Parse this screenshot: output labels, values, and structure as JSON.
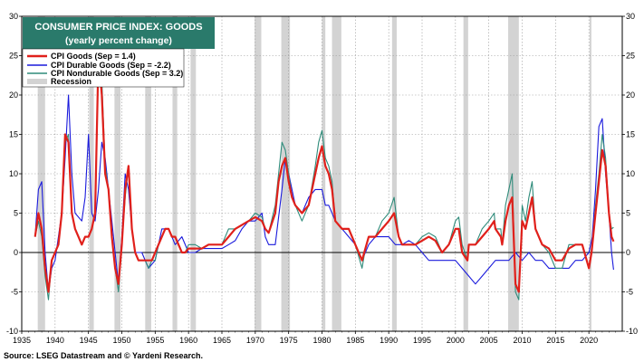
{
  "chart_data": {
    "type": "line",
    "title": "CONSUMER PRICE INDEX: GOODS",
    "subtitle": "(yearly percent change)",
    "source": "Source: LSEG Datastream and © Yardeni Research.",
    "xlim": [
      1935,
      2025
    ],
    "ylim": [
      -10,
      30
    ],
    "x_ticks": [
      1935,
      1940,
      1945,
      1950,
      1955,
      1960,
      1965,
      1970,
      1975,
      1980,
      1985,
      1990,
      1995,
      2000,
      2005,
      2010,
      2015,
      2020
    ],
    "y_ticks": [
      -10,
      -5,
      0,
      5,
      10,
      15,
      20,
      25,
      30
    ],
    "grid": true,
    "legend_position": "top-left",
    "recessions": [
      [
        1937.4,
        1938.5
      ],
      [
        1945.1,
        1945.8
      ],
      [
        1948.9,
        1949.8
      ],
      [
        1953.5,
        1954.4
      ],
      [
        1957.6,
        1958.3
      ],
      [
        1960.3,
        1961.1
      ],
      [
        1969.9,
        1970.9
      ],
      [
        1973.9,
        1975.2
      ],
      [
        1980.0,
        1980.5
      ],
      [
        1981.5,
        1982.9
      ],
      [
        1990.5,
        1991.2
      ],
      [
        2001.2,
        2001.9
      ],
      [
        2007.9,
        2009.5
      ],
      [
        2020.1,
        2020.3
      ]
    ],
    "legend": [
      {
        "label": "CPI Goods (Sep = 1.4)",
        "color": "#e0201b"
      },
      {
        "label": "CPI Durable Goods (Sep = -2.2)",
        "color": "#1a1adc"
      },
      {
        "label": "CPI Nondurable Goods (Sep = 3.2)",
        "color": "#2e8b7a"
      },
      {
        "label": "Recession",
        "color": "#d3d3d3"
      }
    ],
    "series": [
      {
        "name": "CPI Goods (Sep = 1.4)",
        "color": "#e0201b",
        "x": [
          1937,
          1937.5,
          1938,
          1938.5,
          1939,
          1939.5,
          1940,
          1940.5,
          1941,
          1941.5,
          1942,
          1942.5,
          1943,
          1943.5,
          1944,
          1944.5,
          1945,
          1945.5,
          1946,
          1946.5,
          1947,
          1947.5,
          1948,
          1948.5,
          1949,
          1949.5,
          1950,
          1950.5,
          1951,
          1951.5,
          1952,
          1952.5,
          1953,
          1953.5,
          1954,
          1954.5,
          1955,
          1955.5,
          1956,
          1956.5,
          1957,
          1957.5,
          1958,
          1958.5,
          1959,
          1959.5,
          1960,
          1961,
          1962,
          1963,
          1964,
          1965,
          1966,
          1967,
          1968,
          1969,
          1970,
          1971,
          1971.5,
          1972,
          1973,
          1973.5,
          1974,
          1974.5,
          1975,
          1975.5,
          1976,
          1977,
          1978,
          1979,
          1979.5,
          1980,
          1980.5,
          1981,
          1981.5,
          1982,
          1983,
          1984,
          1985,
          1986,
          1986.5,
          1987,
          1988,
          1989,
          1990,
          1990.8,
          1991.5,
          1992,
          1993,
          1994,
          1995,
          1996,
          1997,
          1998,
          1999,
          2000,
          2000.5,
          2001,
          2001.8,
          2002,
          2003,
          2004,
          2005,
          2005.8,
          2006,
          2006.8,
          2007,
          2007.5,
          2008,
          2008.5,
          2009,
          2009.5,
          2010,
          2010.5,
          2011,
          2011.5,
          2012,
          2013,
          2014,
          2015,
          2016,
          2017,
          2018,
          2019,
          2020,
          2020.4,
          2021,
          2021.5,
          2022,
          2022.5,
          2023,
          2023.4,
          2023.7
        ],
        "values": [
          2,
          5,
          3,
          -2,
          -5,
          -1,
          0,
          1,
          5,
          15,
          14,
          5,
          3,
          2,
          1,
          2,
          2,
          3,
          5,
          25,
          20,
          10,
          8,
          2,
          -2,
          -4,
          1,
          8,
          11,
          3,
          0,
          -1,
          -1,
          -1,
          -1,
          -1,
          0,
          1,
          2,
          3,
          3,
          2,
          2,
          1,
          0,
          0,
          0.5,
          0.5,
          0.5,
          1,
          1,
          1,
          2,
          3,
          3.5,
          4,
          4.5,
          4,
          3,
          2.5,
          5,
          9,
          11,
          12,
          9,
          7,
          6,
          5,
          6,
          10,
          12,
          13.5,
          11,
          10,
          8,
          4,
          3,
          3,
          1,
          -1,
          0.5,
          2,
          2,
          3,
          4,
          5,
          2,
          1,
          1,
          1,
          1.5,
          2,
          1.5,
          0,
          1,
          3,
          3,
          0,
          -1,
          1,
          1,
          2,
          3,
          4,
          3,
          2,
          1,
          4,
          6,
          7,
          -4,
          -5,
          4,
          3,
          5,
          7,
          3,
          1,
          0.5,
          -1,
          -1,
          0.5,
          1,
          1,
          -2,
          0,
          5,
          9,
          13,
          11,
          5,
          2,
          1.4
        ]
      },
      {
        "name": "CPI Durable Goods (Sep = -2.2)",
        "color": "#1a1adc",
        "x": [
          1937,
          1937.5,
          1938,
          1938.5,
          1939,
          1939.5,
          1940,
          1941,
          1941.5,
          1942,
          1942.5,
          1943,
          1944,
          1944.5,
          1945,
          1945.5,
          1946,
          1946.5,
          1947,
          1947.5,
          1948,
          1948.5,
          1949,
          1949.5,
          1950,
          1950.5,
          1951,
          1951.5,
          1952,
          1953,
          1954,
          1955,
          1956,
          1957,
          1958,
          1959,
          1960,
          1961,
          1962,
          1963,
          1964,
          1965,
          1966,
          1967,
          1968,
          1969,
          1970,
          1971,
          1971.5,
          1972,
          1973,
          1974,
          1974.5,
          1975,
          1976,
          1977,
          1978,
          1979,
          1980,
          1980.5,
          1981,
          1982,
          1983,
          1984,
          1985,
          1986,
          1987,
          1988,
          1989,
          1990,
          1991,
          1992,
          1993,
          1994,
          1995,
          1996,
          1997,
          1998,
          1999,
          2000,
          2001,
          2002,
          2003,
          2004,
          2005,
          2006,
          2007,
          2008,
          2009,
          2010,
          2011,
          2012,
          2013,
          2014,
          2015,
          2016,
          2017,
          2018,
          2019,
          2020,
          2020.5,
          2021,
          2021.5,
          2022,
          2022.5,
          2023,
          2023.4,
          2023.7
        ],
        "values": [
          2,
          8,
          9,
          0,
          -5,
          -2,
          -1,
          5,
          12,
          20,
          10,
          5,
          4,
          7,
          15,
          5,
          4,
          8,
          14,
          12,
          8,
          4,
          0,
          -4,
          2,
          10,
          8,
          3,
          0,
          0,
          -2,
          -1,
          3,
          3,
          1,
          2,
          0,
          0,
          0.5,
          0.5,
          0.5,
          0.5,
          1,
          1.5,
          3,
          4,
          4,
          5,
          2,
          1,
          1,
          8,
          12,
          10,
          6,
          5,
          7,
          8,
          8,
          6,
          6,
          4,
          3,
          2,
          1,
          -1,
          1,
          2,
          2,
          2,
          1,
          1,
          1.5,
          1,
          0,
          -1,
          -1,
          -1,
          -1,
          -1,
          -2,
          -3,
          -4,
          -3,
          -2,
          -1,
          -1,
          -1,
          0,
          -1,
          0,
          -1,
          -1,
          -2,
          -2,
          -2,
          -2,
          -1,
          -1,
          0,
          2,
          8,
          16,
          17,
          10,
          5,
          0,
          -2.2
        ]
      },
      {
        "name": "CPI Nondurable Goods (Sep = 3.2)",
        "color": "#2e8b7a",
        "x": [
          1937,
          1937.5,
          1938,
          1938.5,
          1939,
          1939.5,
          1940,
          1940.5,
          1941,
          1941.5,
          1942,
          1942.5,
          1943,
          1943.5,
          1944,
          1944.5,
          1945,
          1945.5,
          1946,
          1946.5,
          1947,
          1947.5,
          1948,
          1948.5,
          1949,
          1949.5,
          1950,
          1950.5,
          1951,
          1951.5,
          1952,
          1952.5,
          1953,
          1953.5,
          1954,
          1954.5,
          1955,
          1955.5,
          1956,
          1956.5,
          1957,
          1957.5,
          1958,
          1958.5,
          1959,
          1959.5,
          1960,
          1961,
          1962,
          1963,
          1964,
          1965,
          1966,
          1967,
          1968,
          1969,
          1970,
          1971,
          1971.5,
          1972,
          1973,
          1973.5,
          1974,
          1974.5,
          1975,
          1975.5,
          1976,
          1977,
          1978,
          1979,
          1979.5,
          1980,
          1980.5,
          1981,
          1981.5,
          1982,
          1983,
          1984,
          1985,
          1986,
          1986.5,
          1987,
          1988,
          1989,
          1990,
          1990.8,
          1991.5,
          1992,
          1993,
          1994,
          1995,
          1996,
          1997,
          1998,
          1999,
          2000,
          2000.5,
          2001,
          2001.8,
          2002,
          2003,
          2004,
          2005,
          2005.8,
          2006,
          2006.8,
          2007,
          2007.5,
          2008,
          2008.5,
          2009,
          2009.5,
          2010,
          2010.5,
          2011,
          2011.5,
          2012,
          2013,
          2014,
          2015,
          2016,
          2017,
          2018,
          2019,
          2020,
          2020.4,
          2021,
          2021.5,
          2022,
          2022.5,
          2023,
          2023.4,
          2023.7
        ],
        "values": [
          2,
          4,
          2,
          -3,
          -6,
          -1,
          0,
          1,
          5,
          14,
          15,
          5,
          3,
          2,
          1,
          2,
          2,
          3,
          5,
          24,
          22,
          11,
          8,
          2,
          -2,
          -5,
          1,
          7,
          11,
          3,
          0,
          -1,
          -1,
          -1,
          -2,
          -1,
          -1,
          1,
          2,
          3,
          3,
          2,
          2,
          1,
          0,
          0,
          1,
          1,
          0.5,
          1,
          1,
          1,
          3,
          3,
          3.5,
          4,
          5,
          4.5,
          3,
          2.5,
          6,
          10,
          14,
          13,
          10,
          7,
          6,
          4,
          6,
          11,
          14,
          15.5,
          12,
          11,
          9,
          4,
          3,
          3,
          1,
          -2,
          0.5,
          2,
          2,
          4,
          5,
          7,
          2,
          1,
          1,
          1,
          2,
          2.5,
          2,
          0,
          1,
          4,
          4.5,
          1,
          -1,
          1,
          1,
          3,
          4,
          5,
          3,
          3,
          1,
          6,
          8,
          10,
          -5,
          -6,
          6,
          4,
          7,
          9,
          3,
          1,
          0,
          -2,
          -2,
          1,
          1,
          1,
          -2,
          0,
          6,
          10,
          15,
          12,
          5,
          3,
          3.2
        ]
      }
    ]
  }
}
